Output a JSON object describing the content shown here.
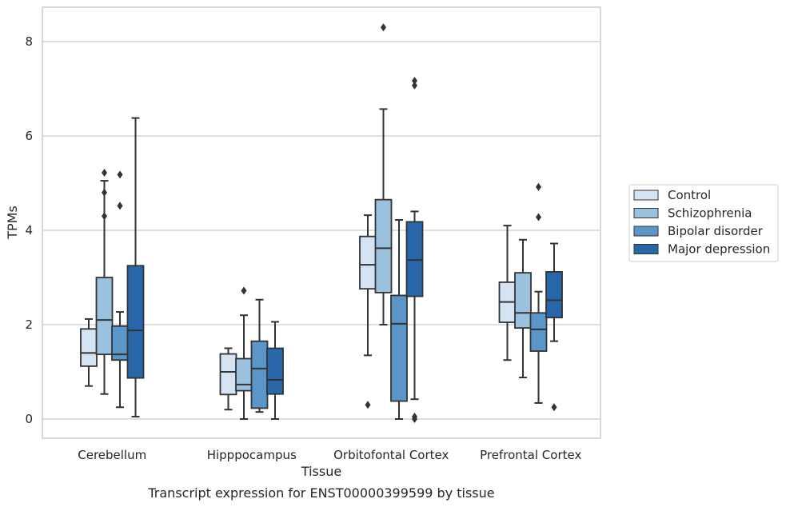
{
  "chart_data": {
    "type": "box",
    "title": "",
    "caption": "Transcript expression for ENST00000399599 by tissue",
    "xlabel": "Tissue",
    "ylabel": "TPMs",
    "ylim": [
      -0.4,
      8.75
    ],
    "yticks": [
      0,
      2,
      4,
      6,
      8
    ],
    "grid": "horizontal",
    "legend_position": "right",
    "categories": [
      "Cerebellum",
      "Hipppocampus",
      "Orbitofontal Cortex",
      "Prefrontal Cortex"
    ],
    "series": [
      {
        "name": "Control",
        "color": "#d4e4f2",
        "boxes": [
          {
            "whislo": 0.7,
            "q1": 1.12,
            "med": 1.4,
            "q3": 1.91,
            "whishi": 2.12,
            "fliers": []
          },
          {
            "whislo": 0.2,
            "q1": 0.52,
            "med": 1.0,
            "q3": 1.38,
            "whishi": 1.5,
            "fliers": []
          },
          {
            "whislo": 1.35,
            "q1": 2.76,
            "med": 3.27,
            "q3": 3.87,
            "whishi": 4.32,
            "fliers": [
              0.3
            ]
          },
          {
            "whislo": 1.25,
            "q1": 2.05,
            "med": 2.48,
            "q3": 2.9,
            "whishi": 4.1,
            "fliers": []
          }
        ]
      },
      {
        "name": "Schizophrenia",
        "color": "#9ac1dd",
        "boxes": [
          {
            "whislo": 0.53,
            "q1": 1.37,
            "med": 2.1,
            "q3": 3.0,
            "whishi": 5.05,
            "fliers": [
              5.22,
              4.8,
              4.3
            ]
          },
          {
            "whislo": 0.0,
            "q1": 0.6,
            "med": 0.73,
            "q3": 1.28,
            "whishi": 2.2,
            "fliers": [
              2.72
            ]
          },
          {
            "whislo": 2.0,
            "q1": 2.68,
            "med": 3.62,
            "q3": 4.65,
            "whishi": 6.57,
            "fliers": [
              8.3
            ]
          },
          {
            "whislo": 0.88,
            "q1": 1.93,
            "med": 2.25,
            "q3": 3.1,
            "whishi": 3.8,
            "fliers": []
          }
        ]
      },
      {
        "name": "Bipolar disorder",
        "color": "#5a96c8",
        "boxes": [
          {
            "whislo": 0.25,
            "q1": 1.25,
            "med": 1.37,
            "q3": 1.97,
            "whishi": 2.27,
            "fliers": [
              5.18,
              4.52
            ]
          },
          {
            "whislo": 0.15,
            "q1": 0.23,
            "med": 1.07,
            "q3": 1.65,
            "whishi": 2.53,
            "fliers": []
          },
          {
            "whislo": 0.0,
            "q1": 0.38,
            "med": 2.02,
            "q3": 2.62,
            "whishi": 4.22,
            "fliers": []
          },
          {
            "whislo": 0.34,
            "q1": 1.44,
            "med": 1.9,
            "q3": 2.25,
            "whishi": 2.7,
            "fliers": [
              4.92,
              4.28
            ]
          }
        ]
      },
      {
        "name": "Major depression",
        "color": "#2767a9",
        "boxes": [
          {
            "whislo": 0.05,
            "q1": 0.87,
            "med": 1.88,
            "q3": 3.25,
            "whishi": 6.38,
            "fliers": []
          },
          {
            "whislo": 0.0,
            "q1": 0.53,
            "med": 0.83,
            "q3": 1.5,
            "whishi": 2.06,
            "fliers": []
          },
          {
            "whislo": 0.42,
            "q1": 2.6,
            "med": 3.37,
            "q3": 4.18,
            "whishi": 4.4,
            "fliers": [
              7.17,
              7.07,
              0.05,
              0.0
            ]
          },
          {
            "whislo": 1.65,
            "q1": 2.15,
            "med": 2.52,
            "q3": 3.12,
            "whishi": 3.72,
            "fliers": [
              0.25
            ]
          }
        ]
      }
    ]
  }
}
